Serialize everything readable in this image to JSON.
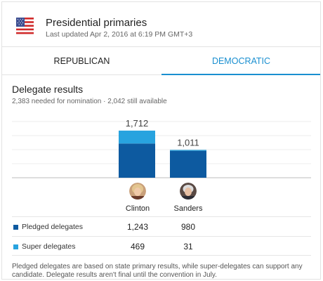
{
  "header": {
    "title": "Presidential primaries",
    "updated": "Last updated Apr 2, 2016 at 6:19 PM GMT+3",
    "flag_icon": "us-flag-icon"
  },
  "tabs": [
    {
      "label": "REPUBLICAN",
      "active": false
    },
    {
      "label": "DEMOCRATIC",
      "active": true
    }
  ],
  "section": {
    "title": "Delegate results",
    "subtitle": "2,383 needed for nomination · 2,042 still available"
  },
  "colors": {
    "pledged": "#0d5aa0",
    "super": "#28a3df",
    "accent": "#1a8fd0"
  },
  "legend": {
    "pledged": "Pledged delegates",
    "super": "Super delegates"
  },
  "chart_data": {
    "type": "bar",
    "stacked": true,
    "categories": [
      "Clinton",
      "Sanders"
    ],
    "series": [
      {
        "name": "Pledged delegates",
        "values": [
          1243,
          980
        ]
      },
      {
        "name": "Super delegates",
        "values": [
          469,
          31
        ]
      }
    ],
    "totals": [
      "1,712",
      "1,011"
    ],
    "ylim": [
      0,
      2042
    ],
    "grid": true
  },
  "candidates": [
    {
      "name": "Clinton",
      "pledged": "1,243",
      "super": "469"
    },
    {
      "name": "Sanders",
      "pledged": "980",
      "super": "31"
    }
  ],
  "footnote": "Pledged delegates are based on state primary results, while super-delegates can support any candidate. Delegate results aren't final until the convention in July."
}
